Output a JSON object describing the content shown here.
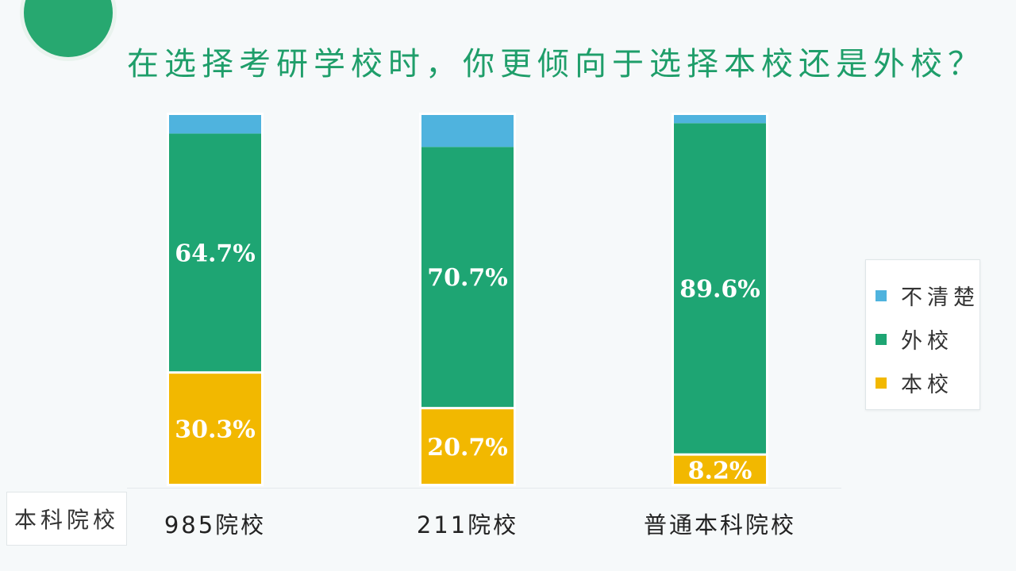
{
  "chart_data": {
    "type": "bar",
    "stacked": true,
    "title": "在选择考研学校时，你更倾向于选择本校还是外校？",
    "xlabel": "本科院校",
    "categories": [
      "985院校",
      "211院校",
      "普通本科院校"
    ],
    "series": [
      {
        "name": "本校",
        "color": "#f2b800",
        "values": [
          30.3,
          20.7,
          8.2
        ],
        "labels": [
          "30.3%",
          "20.7%",
          "8.2%"
        ]
      },
      {
        "name": "外校",
        "color": "#1ea573",
        "values": [
          64.7,
          70.7,
          89.6
        ],
        "labels": [
          "64.7%",
          "70.7%",
          "89.6%"
        ]
      },
      {
        "name": "不清楚",
        "color": "#4fb3de",
        "values": [
          5.0,
          8.6,
          2.2
        ],
        "labels": []
      }
    ],
    "ylim": [
      0,
      100
    ],
    "grid": false,
    "legend": "right"
  }
}
